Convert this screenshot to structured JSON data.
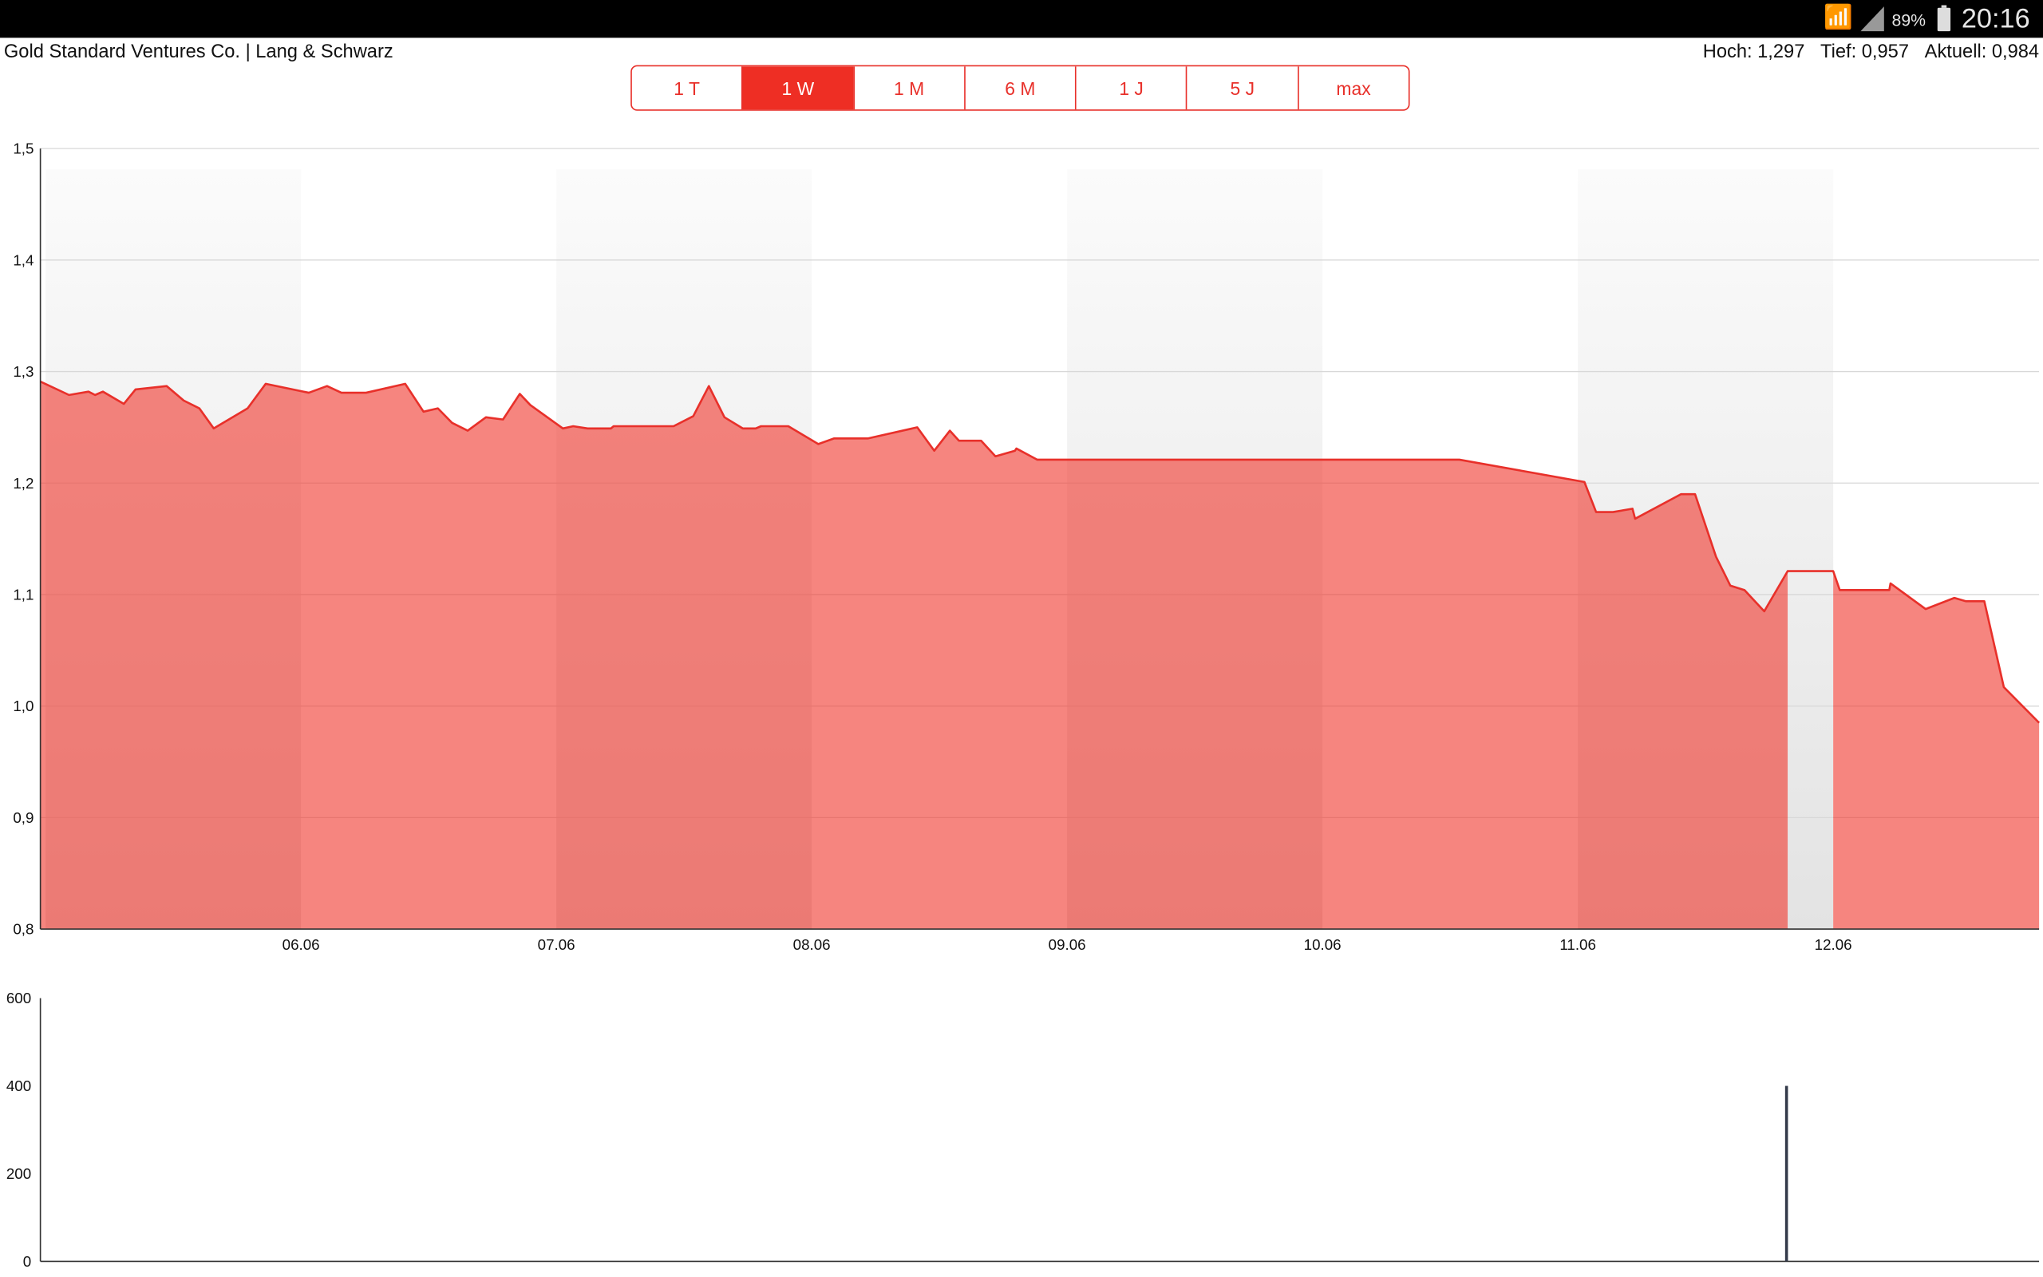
{
  "status_bar": {
    "wifi_icon": "wifi-icon",
    "signal_icon": "signal-icon",
    "battery_percent": "89%",
    "battery_icon": "battery-icon",
    "time": "20:16"
  },
  "header": {
    "title": "Gold Standard Ventures Co. | Lang & Schwarz",
    "high_label": "Hoch:",
    "high": "1,297",
    "low_label": "Tief:",
    "low": "0,957",
    "current_label": "Aktuell:",
    "current": "0,984"
  },
  "ranges": [
    {
      "label": "1 T",
      "active": false
    },
    {
      "label": "1 W",
      "active": true
    },
    {
      "label": "1 M",
      "active": false
    },
    {
      "label": "6 M",
      "active": false
    },
    {
      "label": "1 J",
      "active": false
    },
    {
      "label": "5 J",
      "active": false
    },
    {
      "label": "max",
      "active": false
    }
  ],
  "colors": {
    "accent": "#ee2e24",
    "line": "#e8302a",
    "area": "#f47f7a",
    "volume_bar": "#333a4a"
  },
  "chart_data": [
    {
      "type": "area",
      "ylim": [
        0.8,
        1.5
      ],
      "yticks": [
        "0,8",
        "0,9",
        "1,0",
        "1,1",
        "1,2",
        "1,3",
        "1,4",
        "1,5"
      ],
      "xticks": [
        "06.06",
        "07.06",
        "08.06",
        "09.06",
        "10.06",
        "11.06",
        "12.06"
      ],
      "grid": true,
      "shaded_days": [
        "05.06",
        "07.06",
        "09.06",
        "11.06"
      ],
      "no_fill_ranges": [
        [
          "11.06 19:43",
          "12.06 00:00"
        ]
      ],
      "points": [
        [
          "04.06 23:30",
          1.291
        ],
        [
          "05.06 02:12",
          1.279
        ],
        [
          "05.06 04:02",
          1.282
        ],
        [
          "05.06 04:39",
          1.279
        ],
        [
          "05.06 05:23",
          1.282
        ],
        [
          "05.06 07:21",
          1.271
        ],
        [
          "05.06 08:27",
          1.284
        ],
        [
          "05.06 11:23",
          1.287
        ],
        [
          "05.06 12:59",
          1.274
        ],
        [
          "05.06 14:27",
          1.267
        ],
        [
          "05.06 15:48",
          1.249
        ],
        [
          "05.06 18:59",
          1.267
        ],
        [
          "05.06 20:41",
          1.289
        ],
        [
          "06.06 00:44",
          1.281
        ],
        [
          "06.06 02:27",
          1.287
        ],
        [
          "06.06 03:48",
          1.281
        ],
        [
          "06.06 06:07",
          1.281
        ],
        [
          "06.06 09:48",
          1.289
        ],
        [
          "06.06 11:31",
          1.264
        ],
        [
          "06.06 12:52",
          1.267
        ],
        [
          "06.06 14:12",
          1.254
        ],
        [
          "06.06 15:40",
          1.247
        ],
        [
          "06.06 17:23",
          1.259
        ],
        [
          "06.06 18:59",
          1.257
        ],
        [
          "06.06 20:34",
          1.28
        ],
        [
          "06.06 21:33",
          1.27
        ],
        [
          "07.06 00:37",
          1.249
        ],
        [
          "07.06 01:35",
          1.251
        ],
        [
          "07.06 02:56",
          1.249
        ],
        [
          "07.06 05:08",
          1.249
        ],
        [
          "07.06 05:23",
          1.251
        ],
        [
          "07.06 11:01",
          1.251
        ],
        [
          "07.06 12:52",
          1.26
        ],
        [
          "07.06 14:20",
          1.287
        ],
        [
          "07.06 15:48",
          1.259
        ],
        [
          "07.06 17:31",
          1.249
        ],
        [
          "07.06 18:44",
          1.249
        ],
        [
          "07.06 19:14",
          1.251
        ],
        [
          "07.06 21:48",
          1.251
        ],
        [
          "08.06 00:37",
          1.235
        ],
        [
          "08.06 02:05",
          1.24
        ],
        [
          "08.06 05:16",
          1.24
        ],
        [
          "08.06 09:55",
          1.25
        ],
        [
          "08.06 11:31",
          1.229
        ],
        [
          "08.06 12:59",
          1.247
        ],
        [
          "08.06 13:50",
          1.238
        ],
        [
          "08.06 15:55",
          1.238
        ],
        [
          "08.06 17:16",
          1.224
        ],
        [
          "08.06 19:06",
          1.229
        ],
        [
          "08.06 19:14",
          1.231
        ],
        [
          "08.06 21:11",
          1.221
        ],
        [
          "10.06 12:52",
          1.221
        ],
        [
          "11.06 00:37",
          1.201
        ],
        [
          "11.06 01:43",
          1.174
        ],
        [
          "11.06 03:18",
          1.174
        ],
        [
          "11.06 05:08",
          1.177
        ],
        [
          "11.06 05:23",
          1.168
        ],
        [
          "11.06 09:41",
          1.19
        ],
        [
          "11.06 11:01",
          1.19
        ],
        [
          "11.06 12:59",
          1.134
        ],
        [
          "11.06 14:20",
          1.108
        ],
        [
          "11.06 15:40",
          1.104
        ],
        [
          "11.06 17:31",
          1.085
        ],
        [
          "11.06 19:43",
          1.121
        ],
        [
          "12.06 00:00",
          1.121
        ],
        [
          "12.06 00:37",
          1.104
        ],
        [
          "12.06 05:16",
          1.104
        ],
        [
          "12.06 05:23",
          1.11
        ],
        [
          "12.06 08:41",
          1.087
        ],
        [
          "12.06 11:23",
          1.097
        ],
        [
          "12.06 12:29",
          1.094
        ],
        [
          "12.06 14:12",
          1.094
        ],
        [
          "12.06 16:02",
          1.017
        ],
        [
          "12.06 19:21",
          0.985
        ]
      ]
    },
    {
      "type": "bar",
      "ylim": [
        0,
        600
      ],
      "yticks": [
        "0",
        "200",
        "400",
        "600"
      ],
      "bars": [
        [
          "11.06 19:36",
          400
        ]
      ]
    }
  ]
}
